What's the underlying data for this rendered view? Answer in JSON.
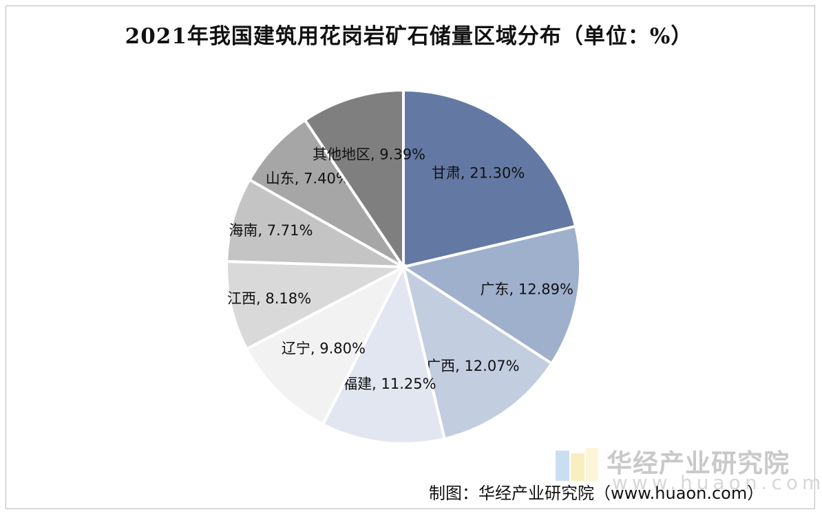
{
  "chart_data": {
    "type": "pie",
    "title": "2021年我国建筑用花岗岩矿石储量区域分布（单位：%）",
    "slices": [
      {
        "label": "甘肃",
        "value": 21.3,
        "display": "21.30%",
        "color": "#6379a3"
      },
      {
        "label": "广东",
        "value": 12.89,
        "display": "12.89%",
        "color": "#9fb0cc"
      },
      {
        "label": "广西",
        "value": 12.07,
        "display": "12.07%",
        "color": "#c3cde0"
      },
      {
        "label": "福建",
        "value": 11.25,
        "display": "11.25%",
        "color": "#e1e6f0"
      },
      {
        "label": "辽宁",
        "value": 9.8,
        "display": "9.80%",
        "color": "#f2f2f2"
      },
      {
        "label": "江西",
        "value": 8.18,
        "display": "8.18%",
        "color": "#d9d9d9"
      },
      {
        "label": "海南",
        "value": 7.71,
        "display": "7.71%",
        "color": "#c4c4c4"
      },
      {
        "label": "山东",
        "value": 7.4,
        "display": "7.40%",
        "color": "#a6a6a6"
      },
      {
        "label": "其他地区",
        "value": 9.39,
        "display": "9.39%",
        "color": "#7f7f7f"
      }
    ],
    "start_angle": "12 o'clock",
    "direction": "clockwise"
  },
  "watermark": {
    "brand": "华经产业研究院",
    "url": "www.huaon.com"
  },
  "credit": "制图：华经产业研究院（www.huaon.com）"
}
